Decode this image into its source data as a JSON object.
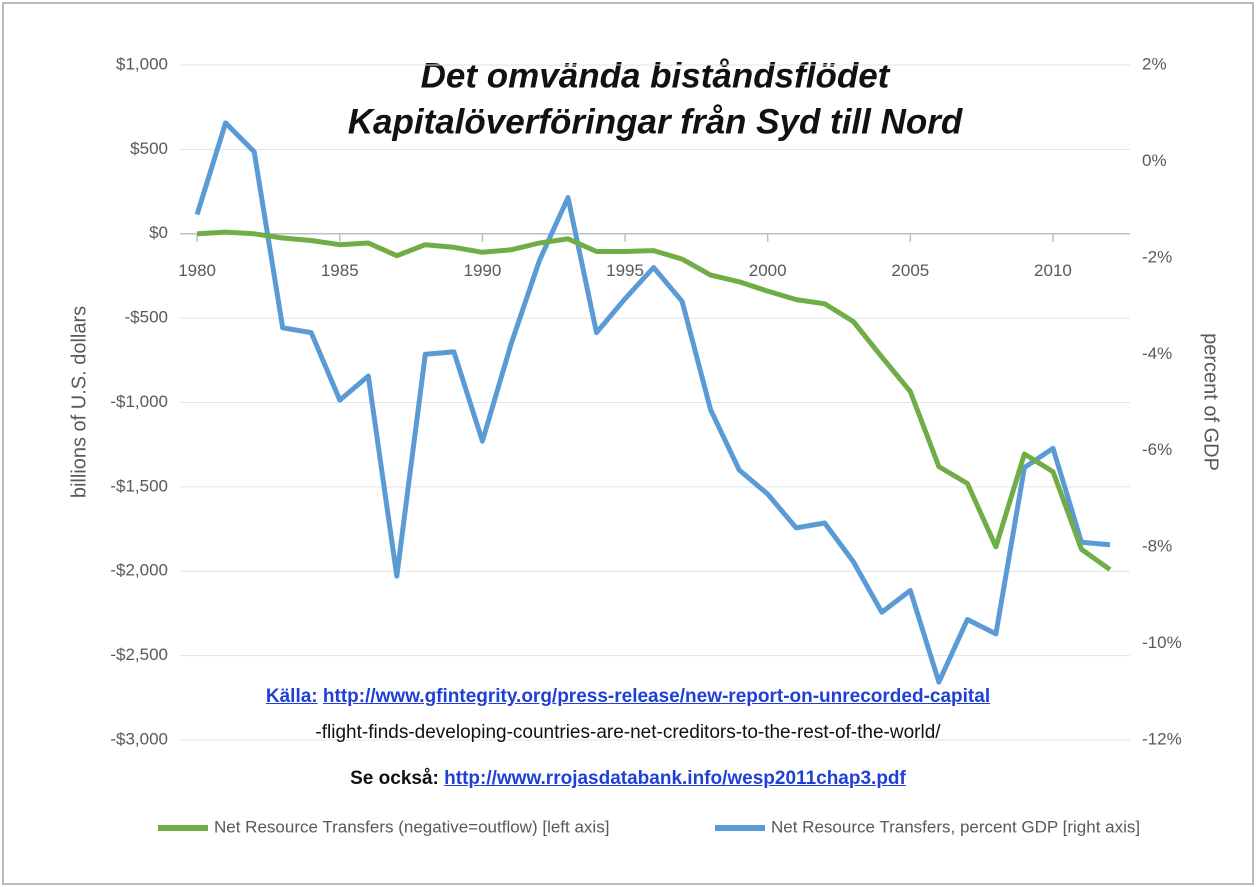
{
  "chart_data": {
    "type": "line",
    "title": [
      "Det omvända biståndsflödet",
      "Kapitalöverföringar från Syd till Nord"
    ],
    "y_label": "billions of U.S. dollars",
    "y2_label": "percent of GDP",
    "x": [
      1980,
      1981,
      1982,
      1983,
      1984,
      1985,
      1986,
      1987,
      1988,
      1989,
      1990,
      1991,
      1992,
      1993,
      1994,
      1995,
      1996,
      1997,
      1998,
      1999,
      2000,
      2001,
      2002,
      2003,
      2004,
      2005,
      2006,
      2007,
      2008,
      2009,
      2010,
      2011,
      2012
    ],
    "xlim": [
      1979.4,
      2012.7
    ],
    "xticks": [
      1980,
      1985,
      1990,
      1995,
      2000,
      2005,
      2010
    ],
    "ylim": [
      -3000,
      1000
    ],
    "yticks": [
      {
        "value": 1000,
        "label": "$1,000"
      },
      {
        "value": 500,
        "label": "$500"
      },
      {
        "value": 0,
        "label": "$0"
      },
      {
        "value": -500,
        "label": "-$500"
      },
      {
        "value": -1000,
        "label": "-$1,000"
      },
      {
        "value": -1500,
        "label": "-$1,500"
      },
      {
        "value": -2000,
        "label": "-$2,000"
      },
      {
        "value": -2500,
        "label": "-$2,500"
      },
      {
        "value": -3000,
        "label": "-$3,000"
      }
    ],
    "y2lim": [
      -12,
      2
    ],
    "y2ticks": [
      {
        "value": 2,
        "label": "2%"
      },
      {
        "value": 0,
        "label": "0%"
      },
      {
        "value": -2,
        "label": "-2%"
      },
      {
        "value": -4,
        "label": "-4%"
      },
      {
        "value": -6,
        "label": "-6%"
      },
      {
        "value": -8,
        "label": "-8%"
      },
      {
        "value": -10,
        "label": "-10%"
      },
      {
        "value": -12,
        "label": "-12%"
      }
    ],
    "grid": true,
    "series": [
      {
        "name": "Net Resource Transfers (negative=outflow) [left axis]",
        "color": "#70ad47",
        "axis": "y",
        "values": [
          0,
          10,
          0,
          -25,
          -40,
          -65,
          -55,
          -130,
          -65,
          -80,
          -110,
          -95,
          -55,
          -30,
          -105,
          -105,
          -100,
          -150,
          -245,
          -285,
          -340,
          -390,
          -415,
          -520,
          -730,
          -935,
          -1380,
          -1480,
          -1855,
          -1305,
          -1410,
          -1870,
          -1990
        ]
      },
      {
        "name": "Net Resource Transfers, percent GDP [right axis]",
        "color": "#5b9bd5",
        "axis": "y2",
        "values": [
          -1.1,
          0.8,
          0.2,
          -3.45,
          -3.55,
          -4.95,
          -4.45,
          -8.6,
          -4.0,
          -3.95,
          -5.8,
          -3.8,
          -2.05,
          -0.75,
          -3.55,
          -2.85,
          -2.2,
          -2.9,
          -5.15,
          -6.4,
          -6.9,
          -7.6,
          -7.5,
          -8.3,
          -9.35,
          -8.9,
          -10.8,
          -9.5,
          -9.8,
          -6.35,
          -5.95,
          -7.9,
          -7.95
        ]
      }
    ],
    "source": {
      "label": "Källa:",
      "url": "http://www.gfintegrity.org/press-release/new-report-on-unrecorded-capital",
      "continuation": "-flight-finds-developing-countries-are-net-creditors-to-the-rest-of-the-world/"
    },
    "see_also": {
      "label": "Se också:",
      "url": "http://www.rrojasdatabank.info/wesp2011chap3.pdf"
    }
  }
}
